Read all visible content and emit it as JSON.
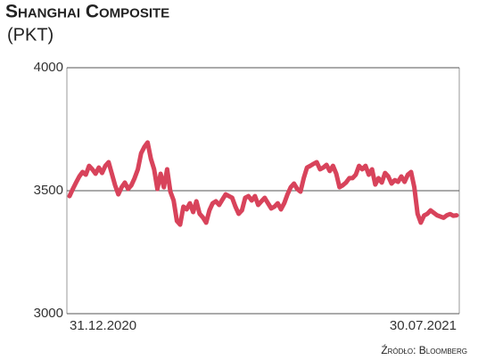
{
  "chart_data": {
    "type": "line",
    "title": "Shanghai Composite",
    "subtitle": "(PKT)",
    "source": "Źródło: Bloomberg",
    "categories": [
      "31.12.2020",
      null,
      null,
      null,
      null,
      null,
      null,
      null,
      null,
      null,
      null,
      null,
      null,
      null,
      null,
      null,
      null,
      null,
      null,
      null,
      null,
      null,
      null,
      null,
      null,
      null,
      null,
      null,
      null,
      null,
      null,
      null,
      null,
      null,
      null,
      null,
      null,
      null,
      null,
      null,
      null,
      null,
      null,
      null,
      null,
      null,
      null,
      null,
      null,
      null,
      null,
      null,
      null,
      null,
      null,
      null,
      null,
      null,
      null,
      null,
      null,
      null,
      null,
      null,
      null,
      null,
      null,
      null,
      null,
      null,
      null,
      null,
      null,
      null,
      null,
      null,
      null,
      null,
      null,
      null,
      null,
      null,
      null,
      null,
      null,
      null,
      null,
      null,
      null,
      null,
      null,
      null,
      null,
      null,
      null,
      null,
      null,
      null,
      null,
      null,
      null,
      null,
      null,
      null,
      null,
      null,
      null,
      null,
      null,
      null,
      null,
      null,
      null,
      null,
      null,
      null,
      null,
      null,
      null,
      "30.07.2021"
    ],
    "values": [
      3478,
      3507,
      3533,
      3558,
      3576,
      3565,
      3601,
      3587,
      3569,
      3594,
      3572,
      3601,
      3616,
      3569,
      3522,
      3485,
      3514,
      3533,
      3507,
      3522,
      3551,
      3587,
      3652,
      3678,
      3696,
      3630,
      3587,
      3507,
      3569,
      3514,
      3587,
      3496,
      3460,
      3377,
      3362,
      3435,
      3424,
      3449,
      3413,
      3457,
      3406,
      3391,
      3370,
      3420,
      3449,
      3457,
      3442,
      3464,
      3485,
      3478,
      3471,
      3435,
      3406,
      3420,
      3471,
      3478,
      3460,
      3478,
      3442,
      3457,
      3471,
      3449,
      3428,
      3435,
      3449,
      3424,
      3449,
      3485,
      3514,
      3529,
      3507,
      3496,
      3551,
      3594,
      3601,
      3609,
      3616,
      3587,
      3594,
      3605,
      3580,
      3601,
      3569,
      3514,
      3522,
      3533,
      3551,
      3551,
      3565,
      3601,
      3587,
      3601,
      3565,
      3587,
      3525,
      3551,
      3533,
      3572,
      3558,
      3529,
      3543,
      3536,
      3558,
      3536,
      3565,
      3576,
      3514,
      3406,
      3370,
      3399,
      3406,
      3420,
      3410,
      3400,
      3395,
      3390,
      3400,
      3405,
      3398,
      3400
    ],
    "color": "#d8435b",
    "ylim": [
      3000,
      4000
    ],
    "yticks": [
      3000,
      3500,
      4000
    ],
    "grid": true
  }
}
